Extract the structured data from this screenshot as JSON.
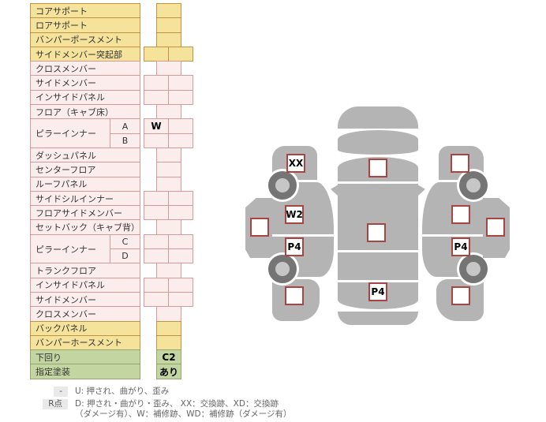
{
  "table": {
    "rows": [
      {
        "label": "コアサポート",
        "color": "yellow",
        "cells": 1,
        "values": [
          ""
        ]
      },
      {
        "label": "ロアサポート",
        "color": "yellow",
        "cells": 1,
        "values": [
          ""
        ]
      },
      {
        "label": "バンパーポースメント",
        "color": "yellow",
        "cells": 1,
        "values": [
          ""
        ]
      },
      {
        "label": "サイドメンバー突起部",
        "color": "yellow",
        "cells": 2,
        "values": [
          "",
          ""
        ]
      },
      {
        "label": "クロスメンバー",
        "color": "pink",
        "cells": 1,
        "values": [
          ""
        ]
      },
      {
        "label": "サイドメンバー",
        "color": "pink",
        "cells": 2,
        "values": [
          "",
          ""
        ]
      },
      {
        "label": "インサイドパネル",
        "color": "pink",
        "cells": 2,
        "values": [
          "",
          ""
        ]
      },
      {
        "label": "フロア（キャブ床）",
        "color": "pink",
        "cells": 1,
        "values": [
          ""
        ]
      },
      {
        "label": "ピラーインナー",
        "color": "pink",
        "subs": [
          {
            "tag": "A",
            "values": [
              "W",
              ""
            ]
          },
          {
            "tag": "B",
            "values": [
              "",
              ""
            ]
          }
        ]
      },
      {
        "label": "ダッシュパネル",
        "color": "pink",
        "cells": 1,
        "values": [
          ""
        ]
      },
      {
        "label": "センターフロア",
        "color": "pink",
        "cells": 1,
        "values": [
          ""
        ]
      },
      {
        "label": "ルーフパネル",
        "color": "pink",
        "cells": 1,
        "values": [
          ""
        ]
      },
      {
        "label": "サイドシルインナー",
        "color": "pink",
        "cells": 2,
        "values": [
          "",
          ""
        ]
      },
      {
        "label": "フロアサイドメンバー",
        "color": "pink",
        "cells": 2,
        "values": [
          "",
          ""
        ]
      },
      {
        "label": "セットバック（キャブ背）",
        "color": "pink",
        "cells": 1,
        "values": [
          ""
        ]
      },
      {
        "label": "ピラーインナー",
        "color": "pink",
        "subs": [
          {
            "tag": "C",
            "values": [
              "",
              ""
            ]
          },
          {
            "tag": "D",
            "values": [
              "",
              ""
            ]
          }
        ]
      },
      {
        "label": "トランクフロア",
        "color": "pink",
        "cells": 1,
        "values": [
          ""
        ]
      },
      {
        "label": "インサイドパネル",
        "color": "pink",
        "cells": 2,
        "values": [
          "",
          ""
        ]
      },
      {
        "label": "サイドメンバー",
        "color": "pink",
        "cells": 2,
        "values": [
          "",
          ""
        ]
      },
      {
        "label": "クロスメンバー",
        "color": "pink",
        "cells": 1,
        "values": [
          ""
        ]
      },
      {
        "label": "バックパネル",
        "color": "yellow",
        "cells": 1,
        "values": [
          ""
        ]
      },
      {
        "label": "バンパーホースメント",
        "color": "yellow",
        "cells": 1,
        "values": [
          ""
        ]
      },
      {
        "label": "下回り",
        "color": "green",
        "cells": 1,
        "values": [
          "C2"
        ]
      },
      {
        "label": "指定塗装",
        "color": "green",
        "cells": 1,
        "values": [
          "あり"
        ]
      }
    ]
  },
  "diagram": {
    "left_outer_square": "",
    "left_side_squares": [
      "XX",
      "W2",
      "P4",
      ""
    ],
    "top_view_squares": [
      "",
      "",
      "P4"
    ],
    "right_side_squares": [
      "",
      "",
      "P4",
      ""
    ],
    "right_outer_square": ""
  },
  "legend": {
    "row1_badge": "-",
    "row1_text": "U: 押され、曲がり、歪み",
    "row2_badge": "R点",
    "row2_text_line1": "D: 押され・曲がり・歪み、 XX：交換跡、XD：交換跡",
    "row2_text_line2": "（ダメージ有）、W：補修跡、WD：補修跡（ダメージ有）"
  },
  "colors": {
    "yellow_fill": "#F5E29B",
    "yellow_border": "#C19244",
    "pink_fill": "#FCEDED",
    "pink_border": "#D79A9A",
    "green_fill": "#C3D6A1",
    "green_border": "#94A66B",
    "car_gray": "#B4B4B4",
    "marker_border": "#A94442",
    "wheel_ring": "#757575"
  }
}
